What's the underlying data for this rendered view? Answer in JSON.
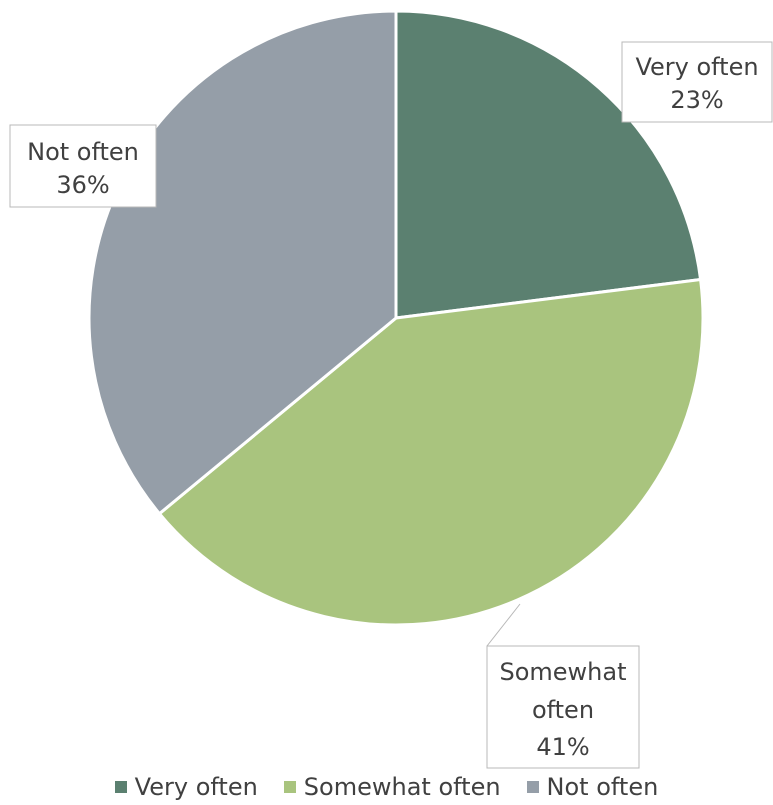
{
  "chart_data": {
    "type": "pie",
    "categories": [
      "Very often",
      "Somewhat often",
      "Not often"
    ],
    "values": [
      23,
      41,
      36
    ],
    "value_labels": [
      "23%",
      "41%",
      "36%"
    ],
    "colors": [
      "#5b8070",
      "#a9c47e",
      "#959ea8"
    ],
    "legend_position": "bottom"
  }
}
